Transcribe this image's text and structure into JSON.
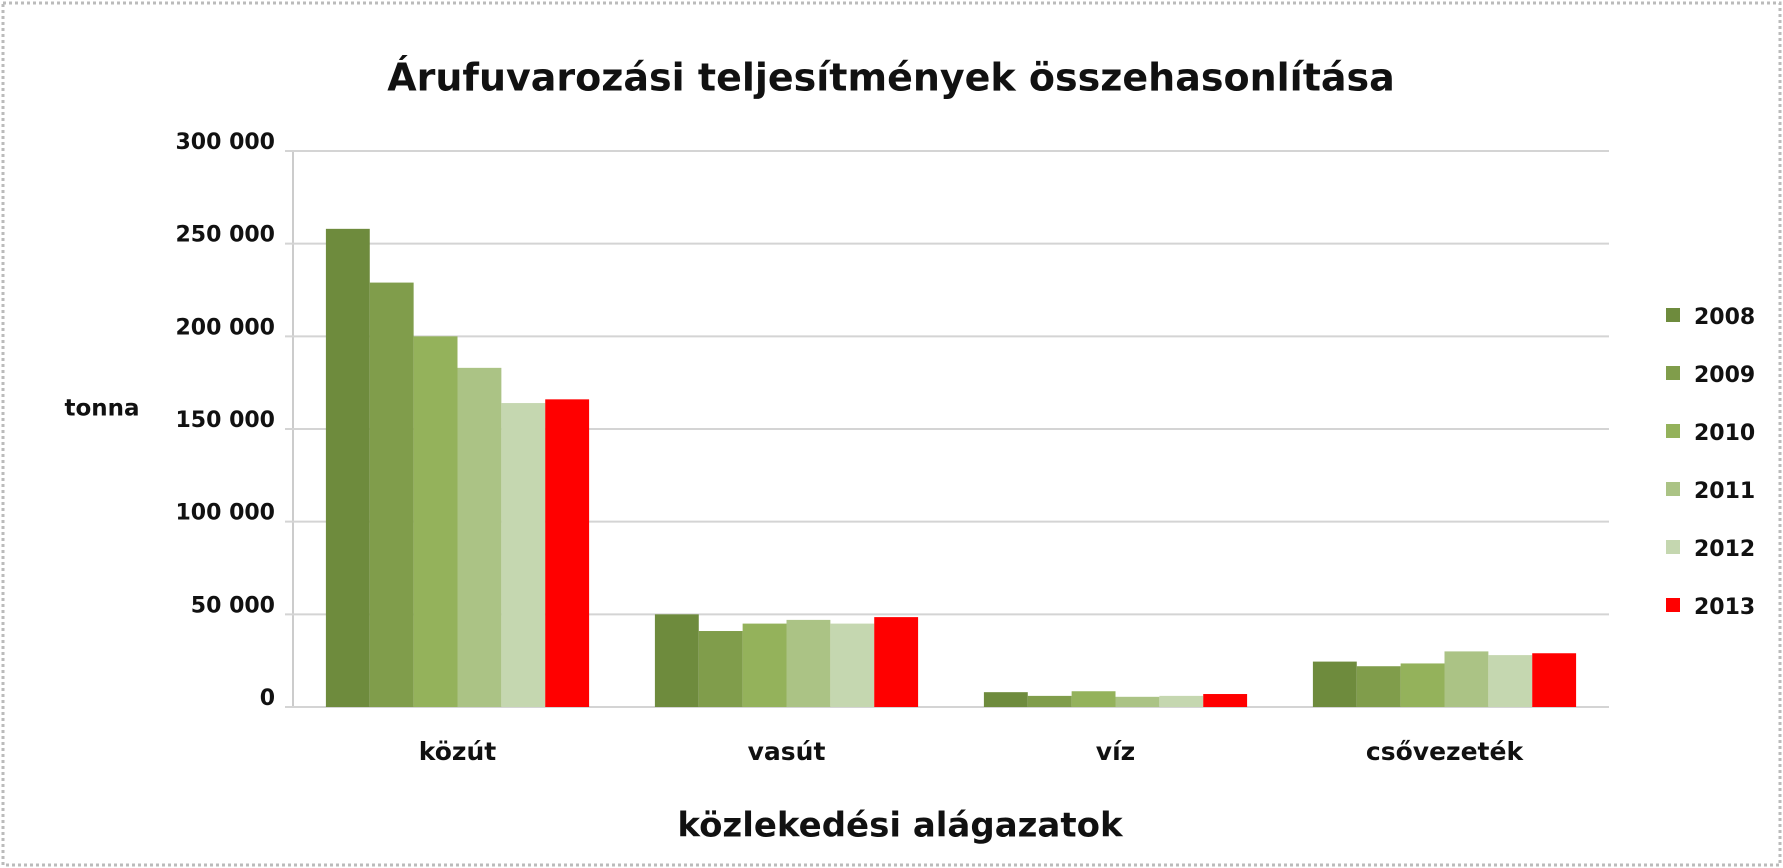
{
  "chart_data": {
    "type": "bar",
    "title": "Árufuvarozási teljesítmények összehasonlítása",
    "y_label": "tonna",
    "x_label": "közlekedési alágazatok",
    "categories": [
      "közút",
      "vasút",
      "víz",
      "csővezeték"
    ],
    "series": [
      {
        "name": "2008",
        "color": "#6e8b3d",
        "values": [
          258000,
          50000,
          8000,
          24500
        ]
      },
      {
        "name": "2009",
        "color": "#809d4b",
        "values": [
          229000,
          41000,
          6000,
          22000
        ]
      },
      {
        "name": "2010",
        "color": "#94b25b",
        "values": [
          200000,
          45000,
          8500,
          23500
        ]
      },
      {
        "name": "2011",
        "color": "#abc385",
        "values": [
          183000,
          47000,
          5500,
          30000
        ]
      },
      {
        "name": "2012",
        "color": "#c5d7b0",
        "values": [
          164000,
          45000,
          6000,
          28000
        ]
      },
      {
        "name": "2013",
        "color": "#ff0000",
        "values": [
          166000,
          48500,
          7000,
          29000
        ]
      }
    ],
    "ylim": [
      0,
      300000
    ],
    "yticks": [
      0,
      {
        "value": 50000,
        "label": "50 000"
      },
      {
        "value": 100000,
        "label": "100 000"
      },
      {
        "value": 150000,
        "label": "150 000"
      },
      {
        "value": 200000,
        "label": "200 000"
      },
      {
        "value": 250000,
        "label": "250 000"
      },
      {
        "value": 300000,
        "label": "300 000"
      }
    ],
    "grid": true,
    "legend": "right"
  }
}
